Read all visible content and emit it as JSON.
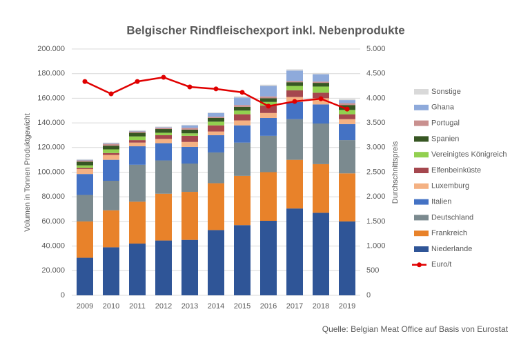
{
  "chart_data": {
    "type": "bar",
    "stacked": true,
    "title": "Belgischer Rindfleischexport inkl. Nebenprodukte",
    "y_label": "Volumen in Tonnen Produktgewicht",
    "y2_label": "Durchschnittspreis",
    "source": "Quelle: Belgian Meat Office auf Basis von Eurostat",
    "categories": [
      "2009",
      "2010",
      "2011",
      "2012",
      "2013",
      "2014",
      "2015",
      "2016",
      "2017",
      "2018",
      "2019"
    ],
    "ylim": [
      0,
      200000
    ],
    "yticks": [
      {
        "value": 0,
        "label": "0"
      },
      {
        "value": 20000,
        "label": "20.000"
      },
      {
        "value": 40000,
        "label": "40.000"
      },
      {
        "value": 60000,
        "label": "60.000"
      },
      {
        "value": 80000,
        "label": "80.000"
      },
      {
        "value": 100000,
        "label": "100.000"
      },
      {
        "value": 120000,
        "label": "120.000"
      },
      {
        "value": 140000,
        "label": "140.000"
      },
      {
        "value": 160000,
        "label": "160.000"
      },
      {
        "value": 180000,
        "label": "180.000"
      },
      {
        "value": 200000,
        "label": "200.000"
      }
    ],
    "y2lim": [
      0,
      5000
    ],
    "y2ticks": [
      0,
      500,
      {
        "value": 1000,
        "label": "1.000"
      },
      {
        "value": 1500,
        "label": "1.500"
      },
      {
        "value": 2000,
        "label": "2.000"
      },
      {
        "value": 2500,
        "label": "2.500"
      },
      {
        "value": 3000,
        "label": "3.000"
      },
      {
        "value": 3500,
        "label": "3.500"
      },
      {
        "value": 4000,
        "label": "4.000"
      },
      {
        "value": 4500,
        "label": "4.500"
      },
      {
        "value": 5000,
        "label": "5.000"
      }
    ],
    "grid": true,
    "legend": "right",
    "series": [
      {
        "name": "Niederlande",
        "color": "#2f5597",
        "values": [
          30500,
          39000,
          42000,
          44500,
          45000,
          53000,
          57000,
          60500,
          70500,
          67000,
          60000
        ]
      },
      {
        "name": "Frankreich",
        "color": "#e8822a",
        "values": [
          29500,
          30000,
          34000,
          38000,
          39000,
          38000,
          40000,
          39500,
          39500,
          39500,
          39000
        ]
      },
      {
        "name": "Deutschland",
        "color": "#7b8a8f",
        "values": [
          21500,
          24000,
          30000,
          27000,
          23000,
          25000,
          27000,
          29500,
          33000,
          33000,
          27000
        ]
      },
      {
        "name": "Italien",
        "color": "#4472c4",
        "values": [
          17000,
          17000,
          15000,
          14000,
          13500,
          14000,
          14000,
          14500,
          14000,
          15500,
          13000
        ]
      },
      {
        "name": "Luxemburg",
        "color": "#f4b183",
        "values": [
          4000,
          4000,
          3000,
          3500,
          4000,
          3000,
          4000,
          4000,
          4000,
          5000,
          4000
        ]
      },
      {
        "name": "Elfenbeinküste",
        "color": "#a5474e",
        "values": [
          1000,
          1500,
          2000,
          3000,
          5000,
          5000,
          5000,
          6000,
          5500,
          4500,
          4000
        ]
      },
      {
        "name": "Vereinigtes Königreich",
        "color": "#92d050",
        "values": [
          2000,
          3000,
          3000,
          2000,
          2000,
          3000,
          3000,
          3000,
          3500,
          5000,
          3500
        ]
      },
      {
        "name": "Spanien",
        "color": "#375623",
        "values": [
          3000,
          3000,
          3000,
          3000,
          3000,
          3000,
          3000,
          3000,
          3000,
          3000,
          4000
        ]
      },
      {
        "name": "Portugal",
        "color": "#c9908f",
        "values": [
          1000,
          1500,
          1000,
          1000,
          1500,
          1000,
          1500,
          1500,
          1000,
          1000,
          1500
        ]
      },
      {
        "name": "Ghana",
        "color": "#8eaadb",
        "values": [
          500,
          500,
          500,
          500,
          2000,
          3000,
          6000,
          8500,
          8500,
          6000,
          2500
        ]
      },
      {
        "name": "Sonstige",
        "color": "#d9d9d9",
        "values": [
          500,
          500,
          500,
          500,
          500,
          500,
          1000,
          1000,
          1000,
          1000,
          1000
        ]
      },
      {
        "name": "Euro/t",
        "color": "#e00000",
        "type": "line",
        "axis": "y2",
        "values": [
          4340,
          4090,
          4340,
          4425,
          4230,
          4190,
          4120,
          3840,
          3935,
          3990,
          3780
        ]
      }
    ]
  }
}
